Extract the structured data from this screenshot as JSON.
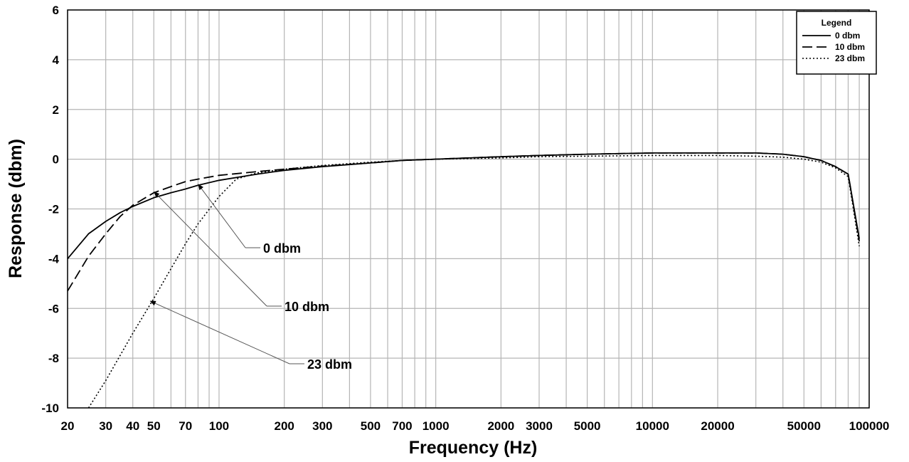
{
  "chart_data": {
    "type": "line",
    "title": "",
    "xlabel": "Frequency (Hz)",
    "ylabel": "Response (dbm)",
    "x_scale": "log",
    "xlim": [
      20,
      100000
    ],
    "ylim": [
      -10,
      6
    ],
    "grid": true,
    "x_ticks": [
      {
        "value": 20,
        "label": "20"
      },
      {
        "value": 30,
        "label": "30"
      },
      {
        "value": 40,
        "label": "40"
      },
      {
        "value": 50,
        "label": "50"
      },
      {
        "value": 70,
        "label": "70"
      },
      {
        "value": 100,
        "label": "100"
      },
      {
        "value": 200,
        "label": "200"
      },
      {
        "value": 300,
        "label": "300"
      },
      {
        "value": 500,
        "label": "500"
      },
      {
        "value": 700,
        "label": "700"
      },
      {
        "value": 1000,
        "label": "1000"
      },
      {
        "value": 2000,
        "label": "2000"
      },
      {
        "value": 3000,
        "label": "3000"
      },
      {
        "value": 5000,
        "label": "5000"
      },
      {
        "value": 10000,
        "label": "10000"
      },
      {
        "value": 20000,
        "label": "20000"
      },
      {
        "value": 50000,
        "label": "50000"
      },
      {
        "value": 100000,
        "label": "100000"
      }
    ],
    "x_gridlines": [
      20,
      30,
      40,
      50,
      60,
      70,
      80,
      90,
      100,
      200,
      300,
      400,
      500,
      600,
      700,
      800,
      900,
      1000,
      2000,
      3000,
      4000,
      5000,
      6000,
      7000,
      8000,
      9000,
      10000,
      20000,
      30000,
      40000,
      50000,
      60000,
      70000,
      80000,
      90000,
      100000
    ],
    "y_ticks": [
      {
        "value": 6,
        "label": "6"
      },
      {
        "value": 4,
        "label": "4"
      },
      {
        "value": 2,
        "label": "2"
      },
      {
        "value": 0,
        "label": "0"
      },
      {
        "value": -2,
        "label": "-2"
      },
      {
        "value": -4,
        "label": "-4"
      },
      {
        "value": -6,
        "label": "-6"
      },
      {
        "value": -8,
        "label": "-8"
      },
      {
        "value": -10,
        "label": "-10"
      }
    ],
    "legend": {
      "title": "Legend",
      "position": "top-right"
    },
    "series": [
      {
        "name": "0 dbm",
        "style": "solid",
        "x": [
          20,
          25,
          30,
          35,
          40,
          50,
          60,
          70,
          80,
          100,
          150,
          200,
          300,
          500,
          700,
          1000,
          2000,
          3000,
          5000,
          10000,
          20000,
          30000,
          40000,
          50000,
          60000,
          70000,
          80000,
          90000
        ],
        "y": [
          -4.0,
          -3.0,
          -2.5,
          -2.15,
          -1.9,
          -1.55,
          -1.35,
          -1.2,
          -1.05,
          -0.85,
          -0.6,
          -0.45,
          -0.3,
          -0.15,
          -0.05,
          0.0,
          0.1,
          0.15,
          0.2,
          0.25,
          0.25,
          0.25,
          0.2,
          0.1,
          -0.05,
          -0.3,
          -0.6,
          -3.2
        ]
      },
      {
        "name": "10 dbm",
        "style": "dashed",
        "x": [
          20,
          25,
          30,
          35,
          40,
          50,
          60,
          70,
          80,
          100,
          150,
          200,
          300,
          500,
          700,
          1000,
          2000,
          3000,
          5000,
          10000,
          20000,
          30000,
          40000,
          50000,
          60000,
          70000,
          80000,
          90000
        ],
        "y": [
          -5.3,
          -3.9,
          -3.0,
          -2.3,
          -1.85,
          -1.35,
          -1.1,
          -0.9,
          -0.8,
          -0.65,
          -0.5,
          -0.4,
          -0.28,
          -0.15,
          -0.05,
          0.0,
          0.1,
          0.15,
          0.2,
          0.25,
          0.25,
          0.25,
          0.2,
          0.1,
          -0.05,
          -0.3,
          -0.6,
          -3.3
        ]
      },
      {
        "name": "23 dbm",
        "style": "dotted",
        "x": [
          25,
          30,
          40,
          50,
          60,
          70,
          80,
          100,
          120,
          150,
          200,
          300,
          500,
          700,
          1000,
          2000,
          3000,
          5000,
          10000,
          20000,
          30000,
          40000,
          50000,
          60000,
          70000,
          80000,
          90000
        ],
        "y": [
          -10.0,
          -8.9,
          -7.0,
          -5.6,
          -4.4,
          -3.4,
          -2.6,
          -1.5,
          -0.8,
          -0.55,
          -0.4,
          -0.25,
          -0.12,
          -0.05,
          0.0,
          0.05,
          0.1,
          0.12,
          0.15,
          0.15,
          0.12,
          0.08,
          0.0,
          -0.12,
          -0.35,
          -0.7,
          -3.5
        ]
      }
    ],
    "annotations": [
      {
        "text": "0 dbm",
        "target_x": 80,
        "target_y": -1.0
      },
      {
        "text": "10 dbm",
        "target_x": 50,
        "target_y": -1.3
      },
      {
        "text": "23 dbm",
        "target_x": 48,
        "target_y": -5.7
      }
    ]
  }
}
